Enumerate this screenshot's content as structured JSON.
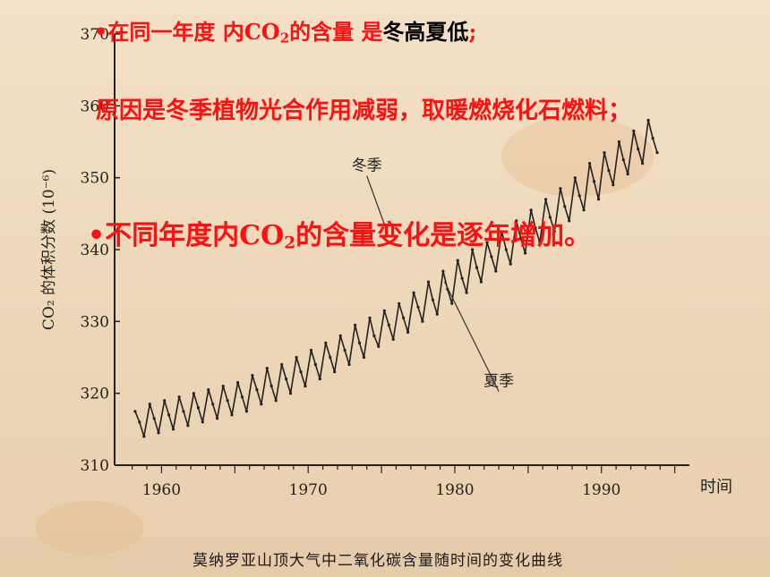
{
  "notes": {
    "n1": {
      "bullet": "•",
      "text_red": "在同一年度 内CO",
      "sub": "2",
      "text_red2": "的含量 是",
      "text_black": "冬高夏低",
      "text_red3": ";"
    },
    "n2": {
      "text": "原因是冬季植物光合作用减弱，取暖燃烧化石燃料；"
    },
    "n3": {
      "bullet": "•",
      "text_a": "不同年度内CO",
      "sub": "2",
      "text_b": "的含量变化是逐年增加。"
    }
  },
  "caption": "莫纳罗亚山顶大气中二氧化碳含量随时间的变化曲线",
  "colors": {
    "note_red": "#ff1010",
    "curve": "#222222"
  },
  "chart_data": {
    "type": "line",
    "title": "",
    "xlabel": "时间",
    "ylabel": "CO₂ 的体积分数 (10⁻⁶)",
    "x_ticks": [
      "1960",
      "1970",
      "1980",
      "1990"
    ],
    "y_ticks": [
      "310",
      "320",
      "330",
      "340",
      "350",
      "360",
      "370"
    ],
    "xlim": [
      1956.8,
      1996
    ],
    "ylim": [
      310,
      370
    ],
    "annotations": [
      {
        "label": "冬季",
        "x": 1974.0,
        "y": 351.0,
        "target_x": 1975.2,
        "target_y": 343.5
      },
      {
        "label": "夏季",
        "x": 1983.0,
        "y": 321.0,
        "target_x": 1979.3,
        "target_y": 335.5
      }
    ],
    "series": [
      {
        "x": [
          1958.2,
          1958.5,
          1958.8,
          1959.2,
          1959.5,
          1959.8,
          1960.2,
          1960.5,
          1960.8,
          1961.2,
          1961.5,
          1961.8,
          1962.2,
          1962.5,
          1962.8,
          1963.2,
          1963.5,
          1963.8,
          1964.2,
          1964.5,
          1964.8,
          1965.2,
          1965.5,
          1965.8,
          1966.2,
          1966.5,
          1966.8,
          1967.2,
          1967.5,
          1967.8,
          1968.2,
          1968.5,
          1968.8,
          1969.2,
          1969.5,
          1969.8,
          1970.2,
          1970.5,
          1970.8,
          1971.2,
          1971.5,
          1971.8,
          1972.2,
          1972.5,
          1972.8,
          1973.2,
          1973.5,
          1973.8,
          1974.2,
          1974.5,
          1974.8,
          1975.2,
          1975.5,
          1975.8,
          1976.2,
          1976.5,
          1976.8,
          1977.2,
          1977.5,
          1977.8,
          1978.2,
          1978.5,
          1978.8,
          1979.2,
          1979.5,
          1979.8,
          1980.2,
          1980.5,
          1980.8,
          1981.2,
          1981.5,
          1981.8,
          1982.2,
          1982.5,
          1982.8,
          1983.2,
          1983.5,
          1983.8,
          1984.2,
          1984.5,
          1984.8,
          1985.2,
          1985.5,
          1985.8,
          1986.2,
          1986.5,
          1986.8,
          1987.2,
          1987.5,
          1987.8,
          1988.2,
          1988.5,
          1988.8,
          1989.2,
          1989.5,
          1989.8,
          1990.2,
          1990.5,
          1990.8,
          1991.2,
          1991.5,
          1991.8,
          1992.2,
          1992.5,
          1992.8,
          1993.2,
          1993.5,
          1993.8
        ],
        "values": [
          317.5,
          316.0,
          314.0,
          318.5,
          316.5,
          314.5,
          319.0,
          317.0,
          315.0,
          319.5,
          317.5,
          315.5,
          320.0,
          318.0,
          316.0,
          320.5,
          318.5,
          316.5,
          321.0,
          319.0,
          317.0,
          321.5,
          319.5,
          317.5,
          322.5,
          320.5,
          318.5,
          323.5,
          321.0,
          319.0,
          324.0,
          322.0,
          320.0,
          325.0,
          323.0,
          321.0,
          326.0,
          324.0,
          322.0,
          327.0,
          325.0,
          323.0,
          328.0,
          326.0,
          324.0,
          329.5,
          327.0,
          325.0,
          330.5,
          328.0,
          326.5,
          331.5,
          329.5,
          327.5,
          332.5,
          330.5,
          328.5,
          334.0,
          332.0,
          330.0,
          335.5,
          333.0,
          331.0,
          337.0,
          334.5,
          332.5,
          338.5,
          336.0,
          334.0,
          340.0,
          337.5,
          335.5,
          341.0,
          339.0,
          337.0,
          342.5,
          340.0,
          338.0,
          344.0,
          341.5,
          339.5,
          345.5,
          343.0,
          341.0,
          347.0,
          344.5,
          342.5,
          348.5,
          346.0,
          344.0,
          350.0,
          347.5,
          345.5,
          352.0,
          349.5,
          347.0,
          353.5,
          351.0,
          349.0,
          355.0,
          352.5,
          350.5,
          356.5,
          354.0,
          352.0,
          358.0,
          355.5,
          353.5
        ]
      }
    ]
  }
}
